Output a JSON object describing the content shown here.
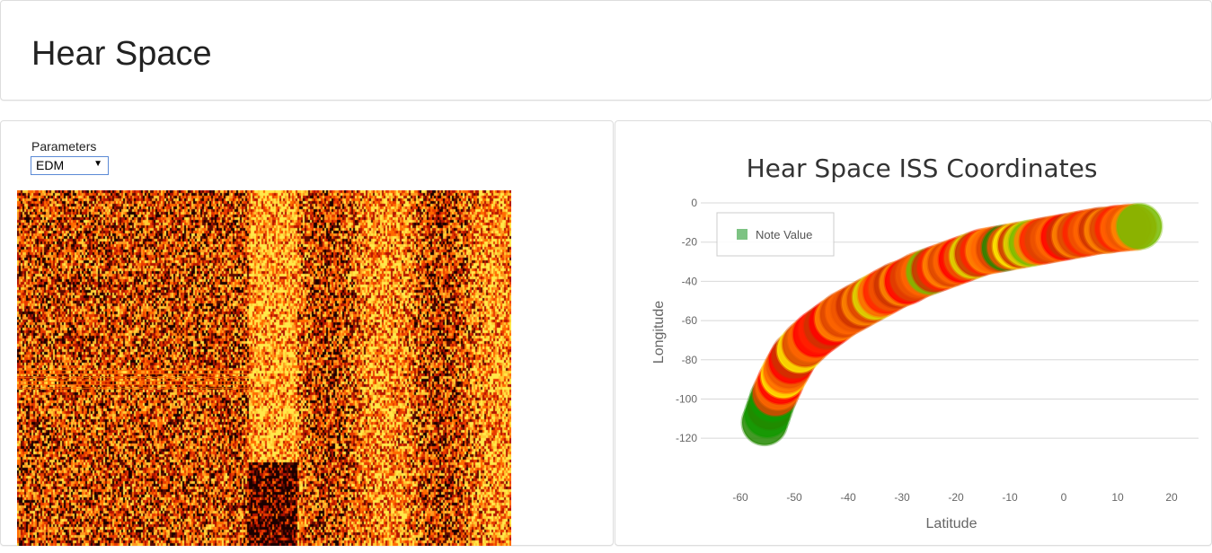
{
  "header": {
    "title": "Hear Space"
  },
  "controls": {
    "parameters_label": "Parameters",
    "parameters_value": "EDM"
  },
  "colors": {
    "heatmap_palette": [
      "#1a0000",
      "#5c0a00",
      "#b31400",
      "#e83a00",
      "#ff6a00",
      "#ff9a1f",
      "#ffcc33",
      "#ffe94a"
    ],
    "bubble_colors": [
      "#ff0000",
      "#ff2200",
      "#dd4400",
      "#cc3300",
      "#ff6600",
      "#ee5500",
      "#ff8800",
      "#ffee00",
      "#dddd00",
      "#77bb00",
      "#228800",
      "#119900"
    ]
  },
  "chart_data": {
    "type": "scatter",
    "title": "Hear Space ISS Coordinates",
    "xlabel": "Latitude",
    "ylabel": "Longitude",
    "xlim": [
      -65,
      25
    ],
    "ylim": [
      -130,
      0
    ],
    "xticks": [
      "-60",
      "-50",
      "-40",
      "-30",
      "-20",
      "-10",
      "0",
      "10",
      "20"
    ],
    "yticks": [
      "0",
      "-20",
      "-40",
      "-60",
      "-80",
      "-100",
      "-120"
    ],
    "grid": true,
    "legend": {
      "placement": "top-left",
      "entries": [
        "Note Value"
      ],
      "swatch_color": "#7dc383"
    },
    "series": [
      {
        "name": "Note Value",
        "x": [
          -55.5,
          -55,
          -54.5,
          -54,
          -53.5,
          -53,
          -52.5,
          -52,
          -51.5,
          -51,
          -50.5,
          -50,
          -49,
          -48,
          -47,
          -46,
          -45,
          -44,
          -43,
          -42,
          -41,
          -40,
          -39,
          -38,
          -37,
          -36,
          -35,
          -34,
          -33,
          -32,
          -31,
          -30,
          -29,
          -28,
          -27,
          -26,
          -25,
          -24,
          -23,
          -22,
          -21,
          -20,
          -19,
          -18,
          -17,
          -16,
          -15,
          -14,
          -13,
          -12,
          -11,
          -10,
          -9,
          -8,
          -7,
          -6,
          -5,
          -4,
          -3,
          -2,
          -1,
          0,
          1,
          2,
          3,
          4,
          5,
          6,
          7,
          8,
          9,
          10,
          11,
          12,
          13,
          14
        ],
        "y": [
          -112,
          -108,
          -104,
          -100,
          -97,
          -94,
          -91,
          -88,
          -85.5,
          -83,
          -80.5,
          -78,
          -75,
          -72,
          -69.5,
          -67,
          -65,
          -63,
          -61,
          -59,
          -57,
          -55.5,
          -54,
          -52.5,
          -51,
          -49.5,
          -48,
          -46.5,
          -45,
          -43.5,
          -42,
          -41,
          -40,
          -38.5,
          -37,
          -36,
          -35,
          -34,
          -33,
          -32,
          -31,
          -30,
          -29,
          -28,
          -27,
          -26,
          -25,
          -24.5,
          -24,
          -23.5,
          -23,
          -22.5,
          -22,
          -21.5,
          -21,
          -20.5,
          -20,
          -19.5,
          -19,
          -18.5,
          -18,
          -17.5,
          -17,
          -16.5,
          -16,
          -15.5,
          -15,
          -14.5,
          -14,
          -14,
          -13.5,
          -13,
          -13,
          -12.5,
          -12.5,
          -12
        ],
        "note_values": [
          10,
          11,
          10,
          11,
          2,
          4,
          0,
          7,
          4,
          5,
          0,
          3,
          7,
          2,
          4,
          0,
          1,
          3,
          0,
          6,
          2,
          4,
          5,
          3,
          6,
          2,
          8,
          4,
          1,
          5,
          3,
          6,
          0,
          2,
          5,
          4,
          9,
          3,
          1,
          6,
          2,
          4,
          0,
          5,
          8,
          3,
          1,
          6,
          4,
          2,
          10,
          5,
          7,
          3,
          8,
          9,
          6,
          1,
          2,
          5,
          4,
          0,
          3,
          6,
          2,
          1,
          5,
          4,
          3,
          6,
          2,
          1,
          4,
          5,
          6,
          9
        ]
      }
    ]
  }
}
